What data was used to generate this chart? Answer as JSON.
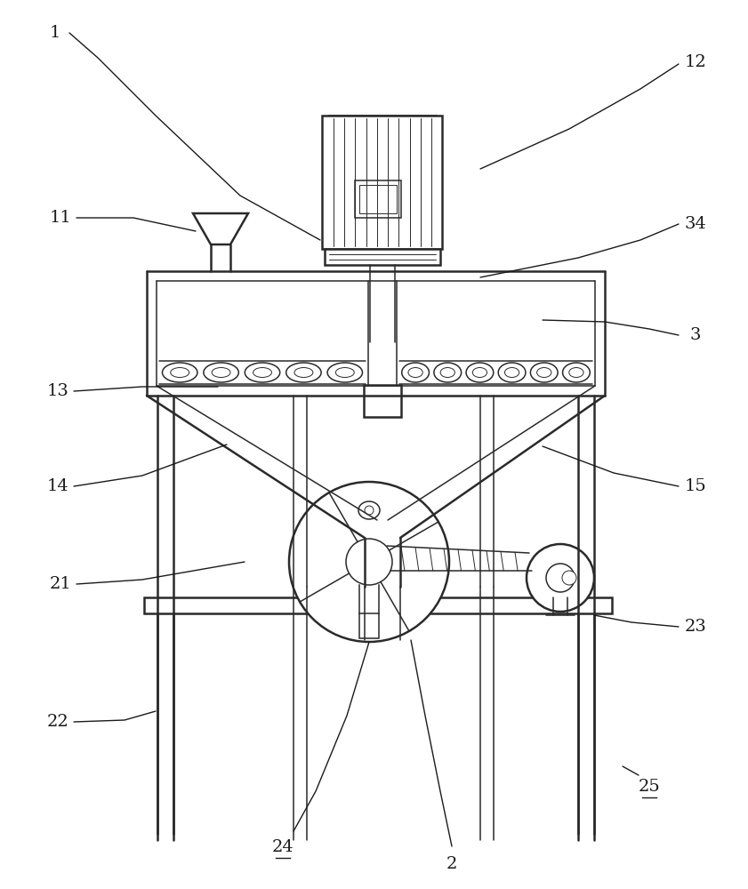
{
  "bg_color": "#ffffff",
  "line_color": "#2a2a2a",
  "label_color": "#1a1a1a",
  "figsize": [
    8.41,
    10.0
  ],
  "dpi": 100,
  "lw_outer": 1.8,
  "lw_inner": 1.1,
  "lw_thin": 0.7,
  "label_fs": 14
}
